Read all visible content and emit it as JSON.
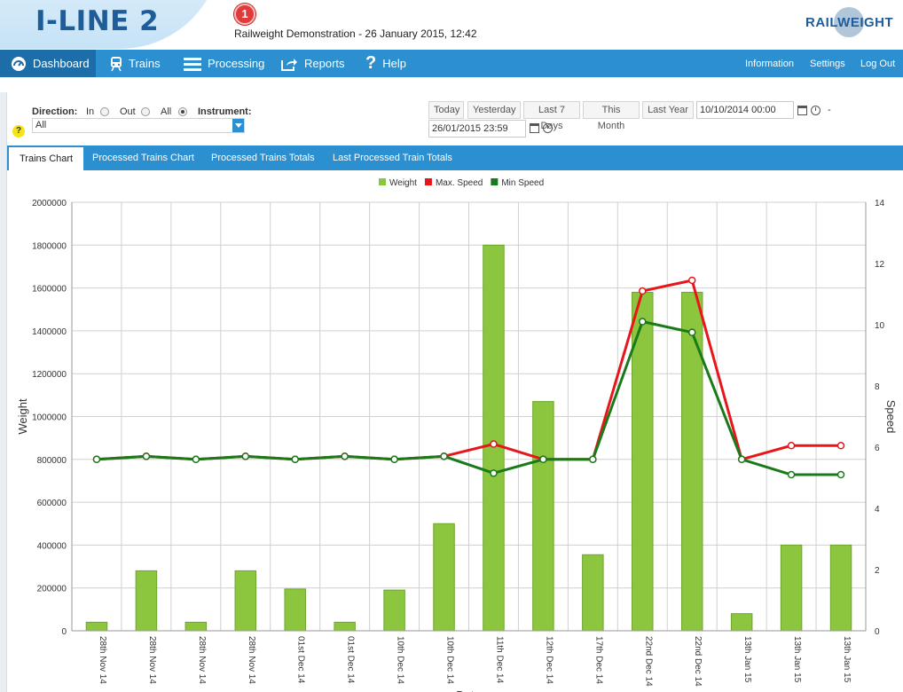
{
  "header": {
    "app_title": "I-LINE 2",
    "notification_count": "1",
    "subtitle": "Railweight Demonstration - 26 January 2015, 12:42",
    "brand": "RAILWEIGHT"
  },
  "nav": {
    "items": [
      {
        "label": "Dashboard",
        "icon": "dashboard-icon"
      },
      {
        "label": "Trains",
        "icon": "train-icon"
      },
      {
        "label": "Processing",
        "icon": "list-icon"
      },
      {
        "label": "Reports",
        "icon": "share-icon"
      },
      {
        "label": "Help",
        "icon": "question-icon"
      }
    ],
    "right": {
      "information": "Information",
      "settings": "Settings",
      "logout": "Log Out"
    }
  },
  "filter": {
    "direction_label": "Direction:",
    "options": {
      "in": "In",
      "out": "Out",
      "all": "All"
    },
    "selected_direction": "All",
    "instrument_label": "Instrument:",
    "instrument_value": "All",
    "help_glyph": "?",
    "date_buttons": {
      "today": "Today",
      "yesterday": "Yesterday",
      "last7": "Last 7 Days",
      "this_month": "This Month",
      "last_year": "Last Year"
    },
    "date_from": "10/10/2014 00:00",
    "date_to": "26/01/2015 23:59",
    "separator": "-"
  },
  "tabs": [
    {
      "label": "Trains Chart",
      "active": true
    },
    {
      "label": "Processed Trains Chart",
      "active": false
    },
    {
      "label": "Processed Trains Totals",
      "active": false
    },
    {
      "label": "Last Processed Train Totals",
      "active": false
    }
  ],
  "colors": {
    "weight": "#8cc63f",
    "max_speed": "#e8161b",
    "min_speed": "#1a7a1a",
    "nav": "#2c8fd0",
    "nav_active": "#1d6ea8"
  },
  "chart_data": {
    "type": "bar",
    "xlabel": "Date",
    "ylabel": "Weight",
    "y2label": "Speed",
    "ylim": [
      0,
      2000000
    ],
    "y_ticks": [
      "0",
      "200000",
      "400000",
      "600000",
      "800000",
      "1000000",
      "1200000",
      "1400000",
      "1600000",
      "1800000",
      "2000000"
    ],
    "y2lim": [
      0,
      14
    ],
    "y2_ticks": [
      "0",
      "2",
      "4",
      "6",
      "8",
      "10",
      "12",
      "14"
    ],
    "grid": true,
    "legend_position": "top-center",
    "categories": [
      "28th Nov 14",
      "28th Nov 14",
      "28th Nov 14",
      "28th Nov 14",
      "01st Dec 14",
      "01st Dec 14",
      "10th Dec 14",
      "10th Dec 14",
      "11th Dec 14",
      "12th Dec 14",
      "17th Dec 14",
      "22nd Dec 14",
      "22nd Dec 14",
      "13th Jan 15",
      "13th Jan 15",
      "13th Jan 15"
    ],
    "series": [
      {
        "name": "Weight",
        "type": "bar",
        "axis": "left",
        "values": [
          40000,
          280000,
          40000,
          280000,
          195000,
          40000,
          190000,
          500000,
          1800000,
          1070000,
          355000,
          1580000,
          1580000,
          80000,
          400000,
          400000
        ]
      },
      {
        "name": "Max. Speed",
        "type": "line",
        "axis": "right",
        "values": [
          5.6,
          5.7,
          5.6,
          5.7,
          5.6,
          5.7,
          5.6,
          5.7,
          6.1,
          5.6,
          5.6,
          11.1,
          11.45,
          5.6,
          6.05,
          6.05
        ]
      },
      {
        "name": "Min Speed",
        "type": "line",
        "axis": "right",
        "values": [
          5.6,
          5.7,
          5.6,
          5.7,
          5.6,
          5.7,
          5.6,
          5.7,
          5.15,
          5.6,
          5.6,
          10.1,
          9.75,
          5.6,
          5.1,
          5.1
        ]
      }
    ]
  }
}
